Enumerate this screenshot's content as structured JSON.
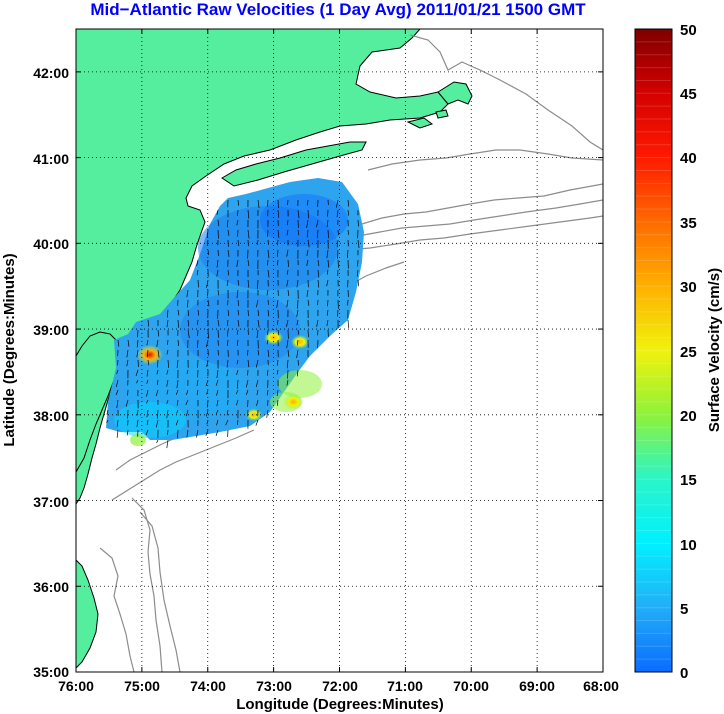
{
  "title": "Mid−Atlantic Raw Velocities (1 Day Avg) 2011/01/21 1500 GMT",
  "axes": {
    "xlabel": "Longitude (Degrees:Minutes)",
    "ylabel": "Latitude (Degrees:Minutes)",
    "x_ticks": [
      "76:00",
      "75:00",
      "74:00",
      "73:00",
      "72:00",
      "71:00",
      "70:00",
      "69:00",
      "68:00"
    ],
    "y_ticks": [
      "42:00",
      "41:00",
      "40:00",
      "39:00",
      "38:00",
      "37:00",
      "36:00",
      "35:00"
    ],
    "x_range_deg_west": [
      76,
      68
    ],
    "y_range_deg_north": [
      35,
      42.5
    ],
    "grid": true
  },
  "colorbar": {
    "label": "Surface Velocity (cm/s)",
    "ticks": [
      "50",
      "45",
      "40",
      "35",
      "30",
      "25",
      "20",
      "15",
      "10",
      "5",
      "0"
    ],
    "range": [
      0,
      50
    ],
    "colormap": "jet"
  },
  "chart_data": {
    "type": "heatmap",
    "variable": "Surface Velocity (cm/s)",
    "typical_velocity_range": [
      2,
      12
    ],
    "hotspots": [
      {
        "lon": -74.88,
        "lat": 38.7,
        "velocity": 45
      },
      {
        "lon": -72.6,
        "lat": 38.85,
        "velocity": 26
      },
      {
        "lon": -73.0,
        "lat": 38.9,
        "velocity": 28
      },
      {
        "lon": -72.7,
        "lat": 38.15,
        "velocity": 30
      },
      {
        "lon": -73.3,
        "lat": 38.0,
        "velocity": 22
      }
    ]
  },
  "colors": {
    "land": "#55ee9f",
    "coast_line": "#000000",
    "bathymetry": "#8c8c8c",
    "title": "#0000ff",
    "vector": "#000000"
  }
}
